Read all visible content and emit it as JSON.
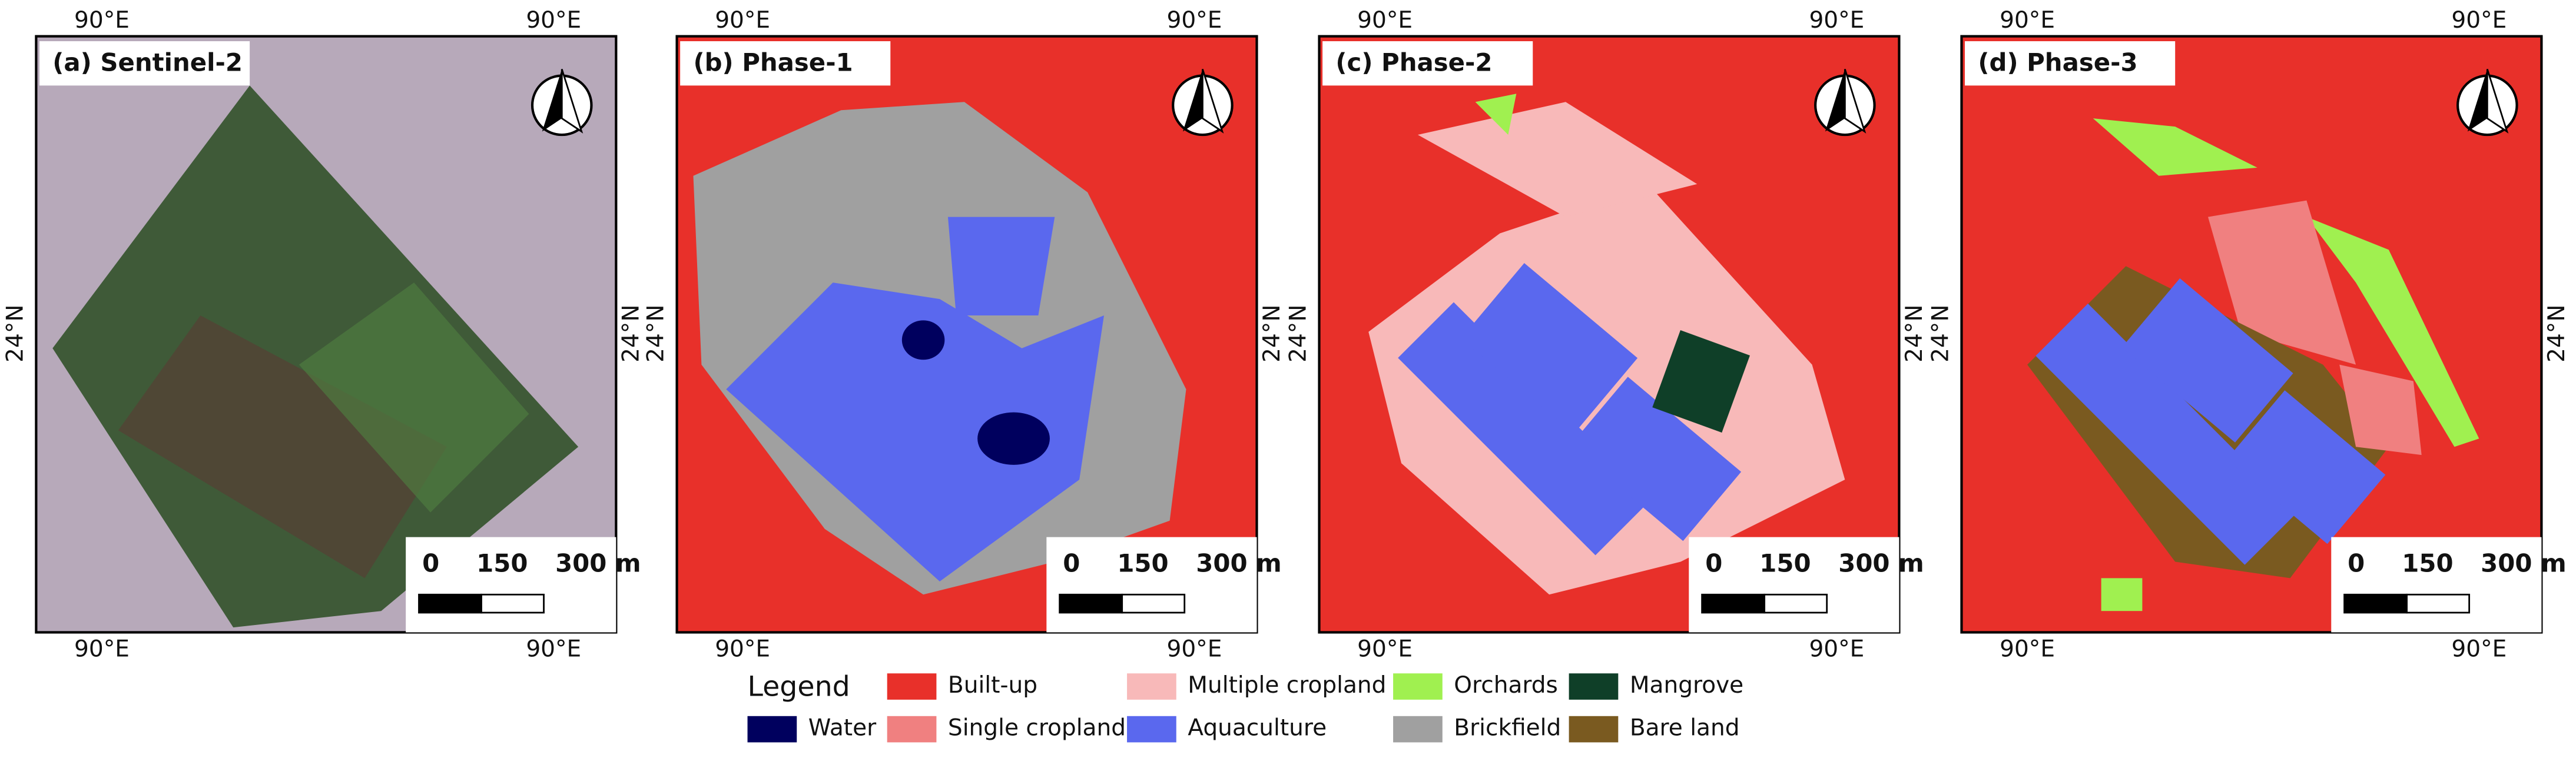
{
  "panels": [
    {
      "title": "(a) Sentinel-2",
      "lon_top": [
        "90°E",
        "90°E"
      ],
      "lon_bottom": [
        "90°E",
        "90°E"
      ],
      "lat_left": "24°N",
      "lat_right": "24°N",
      "scale_labels": [
        "0",
        "150",
        "300 m"
      ]
    },
    {
      "title": "(b) Phase-1",
      "lon_top": [
        "90°E",
        "90°E"
      ],
      "lon_bottom": [
        "90°E",
        "90°E"
      ],
      "lat_left": "24°N",
      "lat_right": "24°N",
      "scale_labels": [
        "0",
        "150",
        "300 m"
      ]
    },
    {
      "title": "(c) Phase-2",
      "lon_top": [
        "90°E",
        "90°E"
      ],
      "lon_bottom": [
        "90°E",
        "90°E"
      ],
      "lat_left": "24°N",
      "lat_right": "24°N",
      "scale_labels": [
        "0",
        "150",
        "300 m"
      ]
    },
    {
      "title": "(d) Phase-3",
      "lon_top": [
        "90°E",
        "90°E"
      ],
      "lon_bottom": [
        "90°E",
        "90°E"
      ],
      "lat_left": "24°N",
      "lat_right": "24°N",
      "scale_labels": [
        "0",
        "150",
        "300 m"
      ]
    }
  ],
  "legend": {
    "title": "Legend",
    "items": [
      {
        "label": "Water",
        "color": "#00005e"
      },
      {
        "label": "Built-up",
        "color": "#e8302a"
      },
      {
        "label": "Single cropland",
        "color": "#f08080"
      },
      {
        "label": "Multiple cropland",
        "color": "#f8b9b9"
      },
      {
        "label": "Aquaculture",
        "color": "#5a68ee"
      },
      {
        "label": "Orchards",
        "color": "#a0f050"
      },
      {
        "label": "Brickfield",
        "color": "#a0a0a0"
      },
      {
        "label": "Mangrove",
        "color": "#0f3f28"
      },
      {
        "label": "Bare land",
        "color": "#7a5a20"
      }
    ]
  }
}
